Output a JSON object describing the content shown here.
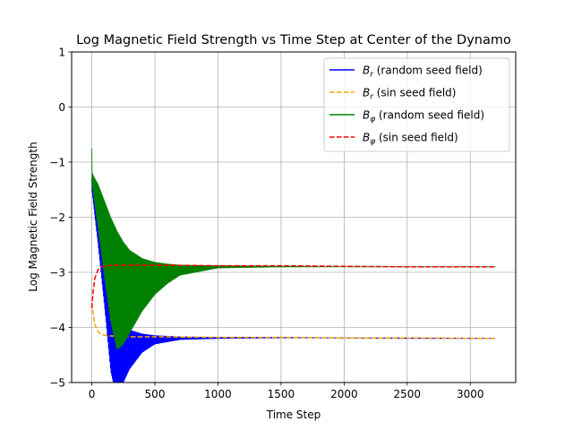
{
  "chart_data": {
    "type": "line",
    "title": "Log Magnetic Field Strength vs Time Step at Center of the Dynamo",
    "xlabel": "Time Step",
    "ylabel": "Log Magnetic Field Strength",
    "xlim": [
      -160,
      3360
    ],
    "ylim": [
      -5,
      1
    ],
    "xticks": [
      0,
      500,
      1000,
      1500,
      2000,
      2500,
      3000
    ],
    "yticks": [
      -5,
      -4,
      -3,
      -2,
      -1,
      0,
      1
    ],
    "xtick_labels": [
      "0",
      "500",
      "1000",
      "1500",
      "2000",
      "2500",
      "3000"
    ],
    "ytick_labels": [
      "−5",
      "−4",
      "−3",
      "−2",
      "−1",
      "0",
      "1"
    ],
    "grid": true,
    "legend_position": "top-right",
    "series": [
      {
        "name_main": "B",
        "name_sub": "r",
        "name_rest": " (random seed field)",
        "color": "#0000ff",
        "style": "solid",
        "oscillating": true,
        "x": [
          0,
          20,
          50,
          100,
          150,
          200,
          250,
          300,
          400,
          500,
          700,
          1000,
          1500,
          2000,
          2500,
          3200
        ],
        "y_max": [
          -1.3,
          -1.7,
          -2.2,
          -3.0,
          -3.5,
          -3.8,
          -3.95,
          -4.05,
          -4.12,
          -4.15,
          -4.17,
          -4.18,
          -4.18,
          -4.19,
          -4.19,
          -4.2
        ],
        "y_min": [
          -1.5,
          -1.9,
          -2.5,
          -3.6,
          -4.8,
          -5.3,
          -5.0,
          -4.75,
          -4.45,
          -4.3,
          -4.22,
          -4.2,
          -4.19,
          -4.19,
          -4.2,
          -4.2
        ]
      },
      {
        "name_main": "B",
        "name_sub": "r",
        "name_rest": " (sin seed field)",
        "color": "#ffa500",
        "style": "dashed",
        "oscillating": false,
        "x": [
          0,
          10,
          25,
          50,
          80,
          120,
          200,
          300,
          500,
          1000,
          1500,
          2000,
          2500,
          3200
        ],
        "y": [
          -3.55,
          -3.75,
          -3.95,
          -4.08,
          -4.13,
          -4.15,
          -4.16,
          -4.17,
          -4.17,
          -4.18,
          -4.18,
          -4.19,
          -4.19,
          -4.2
        ]
      },
      {
        "name_main": "B",
        "name_sub": "φ",
        "name_rest": " (random seed field)",
        "color": "#008000",
        "style": "solid",
        "oscillating": true,
        "x": [
          0,
          5,
          20,
          50,
          100,
          150,
          200,
          250,
          300,
          400,
          500,
          600,
          700,
          1000,
          1500,
          2000,
          2500,
          3200
        ],
        "y_max": [
          -0.75,
          -1.2,
          -1.28,
          -1.4,
          -1.7,
          -2.0,
          -2.25,
          -2.45,
          -2.6,
          -2.75,
          -2.82,
          -2.85,
          -2.87,
          -2.88,
          -2.89,
          -2.9,
          -2.9,
          -2.9
        ],
        "y_min": [
          -1.4,
          -1.45,
          -1.7,
          -2.2,
          -3.1,
          -3.9,
          -4.4,
          -4.3,
          -4.1,
          -3.7,
          -3.4,
          -3.2,
          -3.05,
          -2.92,
          -2.9,
          -2.9,
          -2.9,
          -2.9
        ]
      },
      {
        "name_main": "B",
        "name_sub": "φ",
        "name_rest": " (sin seed field)",
        "color": "#ff0000",
        "style": "dashed",
        "oscillating": false,
        "x": [
          0,
          10,
          25,
          50,
          80,
          120,
          200,
          300,
          500,
          1000,
          1500,
          2000,
          2500,
          3200
        ],
        "y": [
          -3.65,
          -3.35,
          -3.1,
          -2.95,
          -2.9,
          -2.88,
          -2.87,
          -2.87,
          -2.87,
          -2.88,
          -2.88,
          -2.89,
          -2.9,
          -2.9
        ]
      }
    ]
  }
}
